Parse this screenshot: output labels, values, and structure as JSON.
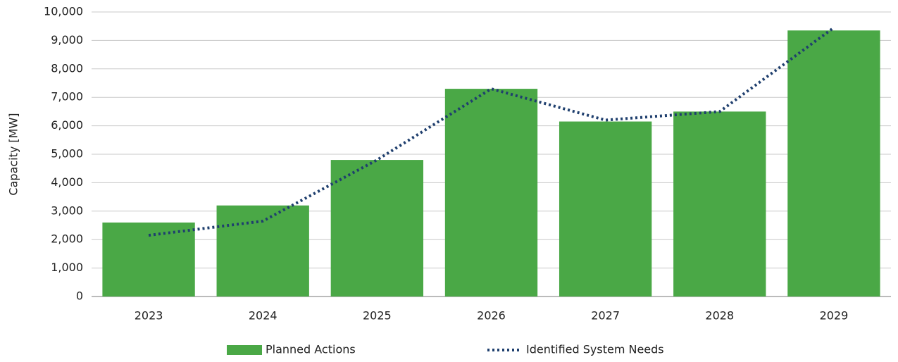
{
  "chart_data": {
    "type": "bar",
    "y_label": "Capacity [MW]",
    "categories": [
      "2023",
      "2024",
      "2025",
      "2026",
      "2027",
      "2028",
      "2029"
    ],
    "series": [
      {
        "name": "Planned Actions",
        "type": "bar",
        "color": "#4aa846",
        "values": [
          2600,
          3200,
          4800,
          7300,
          6150,
          6500,
          9350
        ]
      },
      {
        "name": "Identified System Needs",
        "type": "line",
        "style": "dotted",
        "color": "#1f3f6e",
        "values": [
          2150,
          2650,
          4800,
          7300,
          6200,
          6500,
          9450
        ]
      }
    ],
    "ylim": [
      0,
      10000
    ],
    "yticks": [
      0,
      {
        "value": 1000,
        "label": "1,000"
      },
      {
        "value": 2000,
        "label": "2,000"
      },
      {
        "value": 3000,
        "label": "3,000"
      },
      {
        "value": 4000,
        "label": "4,000"
      },
      {
        "value": 5000,
        "label": "5,000"
      },
      {
        "value": 6000,
        "label": "6,000"
      },
      {
        "value": 7000,
        "label": "7,000"
      },
      {
        "value": 8000,
        "label": "8,000"
      },
      {
        "value": 9000,
        "label": "9,000"
      },
      {
        "value": 10000,
        "label": "10,000"
      }
    ],
    "grid": true,
    "legend": "bottom"
  }
}
